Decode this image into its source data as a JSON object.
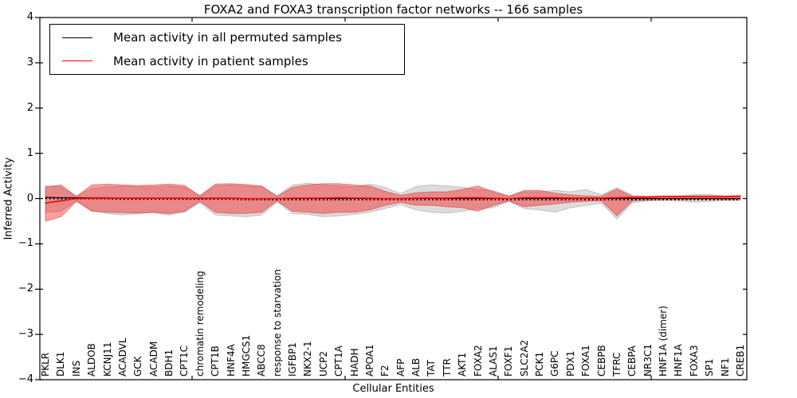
{
  "chart_data": {
    "type": "line",
    "title": "FOXA2 and FOXA3 transcription factor networks -- 166 samples",
    "xlabel": "Cellular Entities",
    "ylabel": "Inferred Activity",
    "ylim": [
      -4,
      4
    ],
    "yticks": [
      {
        "label": "4",
        "value": 4
      },
      {
        "label": "3",
        "value": 3
      },
      {
        "label": "2",
        "value": 2
      },
      {
        "label": "1",
        "value": 1
      },
      {
        "label": "0",
        "value": 0
      },
      {
        "label": "−1",
        "value": -1
      },
      {
        "label": "−2",
        "value": -2
      },
      {
        "label": "−3",
        "value": -3
      },
      {
        "label": "−4",
        "value": -4
      }
    ],
    "legend": [
      {
        "label": "Mean activity in all permuted samples",
        "color": "#000000"
      },
      {
        "label": "Mean activity in patient samples",
        "color": "#ff0000"
      }
    ],
    "legend_position": "upper left",
    "grid": false,
    "categories": [
      "PKLR",
      "DLK1",
      "INS",
      "ALDOB",
      "KCNJ11",
      "ACADVL",
      "GCK",
      "ACADM",
      "BDH1",
      "CPT1C",
      "chromatin remodeling",
      "CPT1B",
      "HNF4A",
      "HMGCS1",
      "ABCC8",
      "response to starvation",
      "IGFBP1",
      "NKX2-1",
      "UCP2",
      "CPT1A",
      "HADH",
      "APOA1",
      "F2",
      "AFP",
      "ALB",
      "TAT",
      "TTR",
      "AKT1",
      "FOXA2",
      "ALAS1",
      "FOXF1",
      "SLC2A2",
      "PCK1",
      "G6PC",
      "PDX1",
      "FOXA1",
      "CEBPB",
      "TFRC",
      "CEBPA",
      "NR3C1",
      "HNF1A (dimer)",
      "HNF1A",
      "FOXA3",
      "SP1",
      "NF1",
      "CREB1"
    ],
    "series": [
      {
        "name": "Mean activity in all permuted samples",
        "color": "#000000",
        "style": "solid-with-dotted-overlay",
        "values": [
          0.03,
          0.02,
          0.02,
          0.02,
          0.02,
          0.01,
          0.01,
          0.01,
          0.01,
          0.01,
          0.01,
          0.01,
          0.01,
          0,
          0,
          0,
          0,
          0,
          0,
          0,
          0,
          0,
          0,
          0,
          0,
          0,
          0,
          0,
          0,
          0,
          0,
          0,
          0,
          0,
          0,
          0,
          0,
          0,
          0,
          0,
          0,
          0,
          0,
          0,
          0,
          0
        ]
      },
      {
        "name": "Mean activity in patient samples",
        "color": "#ff0000",
        "style": "solid",
        "values": [
          -0.1,
          -0.05,
          0,
          0.01,
          0.01,
          0.01,
          0.01,
          0.01,
          0.01,
          0.01,
          0,
          0.01,
          0.01,
          0,
          0,
          0,
          0.01,
          0.01,
          0.01,
          0.02,
          0.01,
          0.01,
          0,
          0,
          0.01,
          0.01,
          0.01,
          0.02,
          0.02,
          0.01,
          0,
          0.02,
          0.02,
          0.02,
          0.01,
          0.01,
          0.01,
          0.02,
          0.03,
          0.03,
          0.04,
          0.04,
          0.04,
          0.04,
          0.04,
          0.05
        ]
      }
    ],
    "bands": [
      {
        "name": "permuted-samples-band",
        "fill": "rgba(128,128,128,0.28)",
        "edge": "rgba(140,140,140,0.45)",
        "upper": [
          0.28,
          0.26,
          0.05,
          0.22,
          0.26,
          0.28,
          0.26,
          0.26,
          0.28,
          0.25,
          0.07,
          0.28,
          0.3,
          0.28,
          0.26,
          0.06,
          0.3,
          0.34,
          0.3,
          0.28,
          0.26,
          0.32,
          0.25,
          0.11,
          0.27,
          0.3,
          0.28,
          0.25,
          0.2,
          0.18,
          0.06,
          0.15,
          0.15,
          0.18,
          0.15,
          0.2,
          0.08,
          0.24,
          0.07,
          0.05,
          0.05,
          0.05,
          0.09,
          0.09,
          0.05,
          0.05
        ],
        "lower": [
          -0.3,
          -0.28,
          -0.05,
          -0.26,
          -0.33,
          -0.36,
          -0.33,
          -0.31,
          -0.36,
          -0.3,
          -0.09,
          -0.36,
          -0.38,
          -0.4,
          -0.36,
          -0.07,
          -0.33,
          -0.35,
          -0.4,
          -0.38,
          -0.35,
          -0.3,
          -0.22,
          -0.13,
          -0.25,
          -0.3,
          -0.32,
          -0.28,
          -0.22,
          -0.2,
          -0.06,
          -0.22,
          -0.25,
          -0.3,
          -0.2,
          -0.15,
          -0.1,
          -0.45,
          -0.09,
          -0.05,
          -0.04,
          -0.05,
          -0.08,
          -0.06,
          -0.04,
          -0.04
        ]
      },
      {
        "name": "patient-samples-band",
        "fill": "rgba(255,0,0,0.38)",
        "edge": "rgba(215,60,60,0.55)",
        "upper": [
          0.26,
          0.3,
          0.05,
          0.3,
          0.32,
          0.3,
          0.29,
          0.3,
          0.32,
          0.29,
          0.06,
          0.32,
          0.33,
          0.31,
          0.28,
          0.05,
          0.25,
          0.3,
          0.33,
          0.33,
          0.3,
          0.28,
          0.16,
          0.07,
          0.13,
          0.15,
          0.15,
          0.2,
          0.28,
          0.15,
          0.05,
          0.18,
          0.18,
          0.12,
          0.08,
          0.06,
          0.05,
          0.21,
          0.05,
          0.05,
          0.06,
          0.06,
          0.06,
          0.06,
          0.06,
          0.07
        ],
        "lower": [
          -0.5,
          -0.4,
          -0.06,
          -0.28,
          -0.3,
          -0.31,
          -0.32,
          -0.3,
          -0.33,
          -0.28,
          -0.06,
          -0.3,
          -0.33,
          -0.33,
          -0.3,
          -0.05,
          -0.28,
          -0.3,
          -0.33,
          -0.3,
          -0.3,
          -0.25,
          -0.15,
          -0.08,
          -0.15,
          -0.15,
          -0.18,
          -0.2,
          -0.28,
          -0.15,
          -0.05,
          -0.18,
          -0.15,
          -0.12,
          -0.08,
          -0.06,
          -0.05,
          -0.38,
          -0.05,
          -0.03,
          -0.02,
          -0.02,
          -0.02,
          -0.02,
          -0.02,
          -0.02
        ]
      }
    ],
    "colors": {
      "frame": "#000000",
      "background": "#ffffff"
    }
  }
}
